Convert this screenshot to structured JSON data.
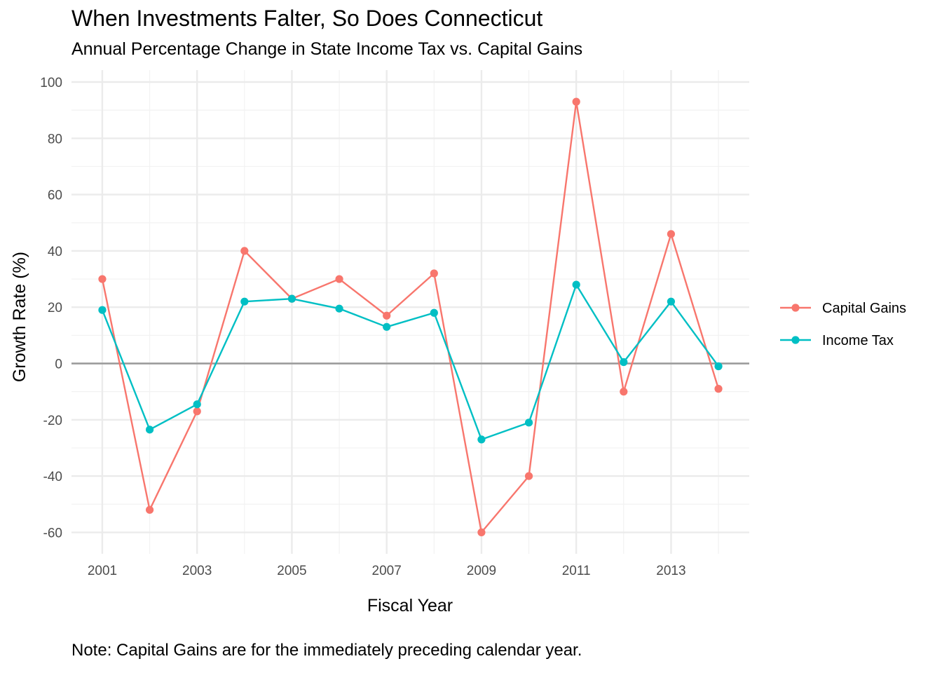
{
  "chart_data": {
    "type": "line",
    "title": "When Investments Falter, So Does Connecticut",
    "subtitle": "Annual Percentage Change in State Income Tax vs. Capital Gains",
    "caption": "Note: Capital Gains are for the immediately preceding calendar year.",
    "xlabel": "Fiscal Year",
    "ylabel": "Growth Rate (%)",
    "x": [
      2001,
      2002,
      2003,
      2004,
      2005,
      2006,
      2007,
      2008,
      2009,
      2010,
      2011,
      2012,
      2013,
      2014
    ],
    "x_ticks": [
      2001,
      2003,
      2005,
      2007,
      2009,
      2011,
      2013
    ],
    "y_ticks": [
      100,
      80,
      60,
      40,
      20,
      0,
      -20,
      -40,
      -60
    ],
    "xlim": [
      2000.35,
      2014.65
    ],
    "ylim": [
      -67,
      100
    ],
    "grid": true,
    "zero_line": true,
    "legend_position": "right",
    "series": [
      {
        "name": "Capital Gains",
        "color": "#F8766D",
        "values": [
          30,
          -52,
          -17,
          40,
          23,
          30,
          17,
          32,
          -60,
          -40,
          93,
          -10,
          46,
          -9
        ]
      },
      {
        "name": "Income Tax",
        "color": "#00BFC4",
        "values": [
          19,
          -23.5,
          -14.5,
          22,
          23,
          19.5,
          13,
          18,
          -27,
          -21,
          28,
          0.5,
          22,
          -1
        ]
      }
    ]
  }
}
